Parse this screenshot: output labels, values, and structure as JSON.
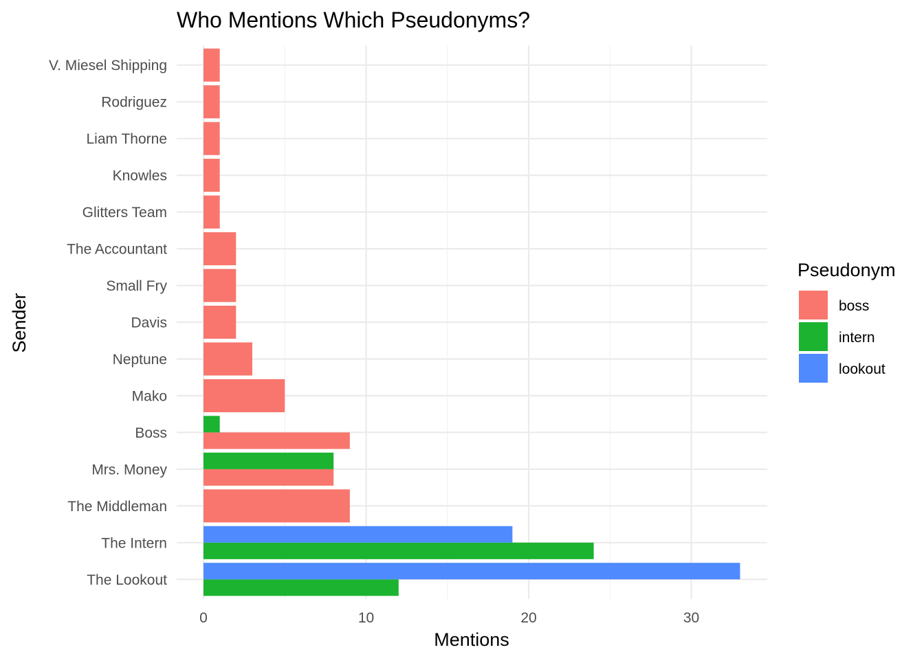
{
  "chart_data": {
    "type": "bar",
    "orientation": "horizontal",
    "position": "dodge",
    "title": "Who Mentions Which Pseudonyms?",
    "xlabel": "Mentions",
    "ylabel": "Sender",
    "xlim": [
      0,
      35
    ],
    "x_ticks": [
      0,
      10,
      20,
      30
    ],
    "grid": true,
    "legend": {
      "title": "Pseudonym",
      "placement": "right",
      "entries": [
        "boss",
        "intern",
        "lookout"
      ]
    },
    "colors": {
      "boss": "#F8766D",
      "intern": "#1BB32F",
      "lookout": "#4F8BFF"
    },
    "categories": [
      "The Lookout",
      "The Intern",
      "The Middleman",
      "Mrs. Money",
      "Boss",
      "Mako",
      "Neptune",
      "Davis",
      "Small Fry",
      "The Accountant",
      "Glitters Team",
      "Knowles",
      "Liam Thorne",
      "Rodriguez",
      "V. Miesel Shipping"
    ],
    "bars": [
      {
        "sender": "The Lookout",
        "pseudonym": "intern",
        "value": 12
      },
      {
        "sender": "The Lookout",
        "pseudonym": "lookout",
        "value": 33
      },
      {
        "sender": "The Intern",
        "pseudonym": "intern",
        "value": 24
      },
      {
        "sender": "The Intern",
        "pseudonym": "lookout",
        "value": 19
      },
      {
        "sender": "The Middleman",
        "pseudonym": "boss",
        "value": 9
      },
      {
        "sender": "Mrs. Money",
        "pseudonym": "boss",
        "value": 8
      },
      {
        "sender": "Mrs. Money",
        "pseudonym": "intern",
        "value": 8
      },
      {
        "sender": "Boss",
        "pseudonym": "boss",
        "value": 9
      },
      {
        "sender": "Boss",
        "pseudonym": "intern",
        "value": 1
      },
      {
        "sender": "Mako",
        "pseudonym": "boss",
        "value": 5
      },
      {
        "sender": "Neptune",
        "pseudonym": "boss",
        "value": 3
      },
      {
        "sender": "Davis",
        "pseudonym": "boss",
        "value": 2
      },
      {
        "sender": "Small Fry",
        "pseudonym": "boss",
        "value": 2
      },
      {
        "sender": "The Accountant",
        "pseudonym": "boss",
        "value": 2
      },
      {
        "sender": "Glitters Team",
        "pseudonym": "boss",
        "value": 1
      },
      {
        "sender": "Knowles",
        "pseudonym": "boss",
        "value": 1
      },
      {
        "sender": "Liam Thorne",
        "pseudonym": "boss",
        "value": 1
      },
      {
        "sender": "Rodriguez",
        "pseudonym": "boss",
        "value": 1
      },
      {
        "sender": "V. Miesel Shipping",
        "pseudonym": "boss",
        "value": 1
      }
    ]
  }
}
